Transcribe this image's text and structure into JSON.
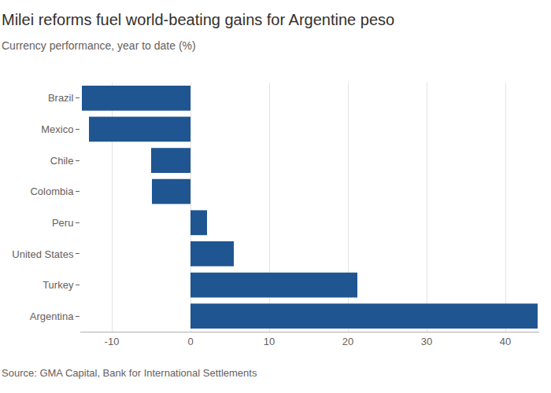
{
  "chart_data": {
    "type": "bar",
    "orientation": "horizontal",
    "title": "Milei reforms fuel world-beating gains for Argentine peso",
    "subtitle": "Currency performance, year to date (%)",
    "source": "Source: GMA Capital, Bank for International Settlements",
    "categories": [
      "Brazil",
      "Mexico",
      "Chile",
      "Colombia",
      "Peru",
      "United States",
      "Turkey",
      "Argentina"
    ],
    "values": [
      -13.8,
      -12.9,
      -5.0,
      -4.9,
      2.1,
      5.5,
      21.2,
      44.1
    ],
    "color": "#1f5591",
    "xlim": [
      -14,
      44.3
    ],
    "xticks": [
      -10,
      0,
      10,
      20,
      30,
      40
    ],
    "grid": true
  }
}
